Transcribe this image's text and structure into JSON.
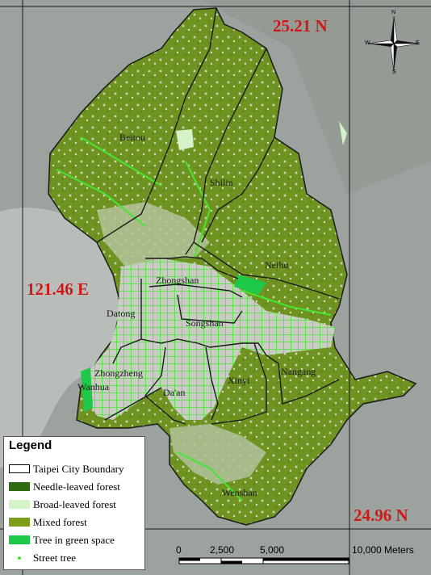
{
  "coordinates": {
    "lat_top": "25.21 N",
    "lon_left": "121.46 E",
    "lat_bottom": "24.96 N"
  },
  "districts": [
    "Beitou",
    "Shilin",
    "Neihu",
    "Zhongshan",
    "Datong",
    "Songshan",
    "Zhongzheng",
    "Wanhua",
    "Da'an",
    "Xinyi",
    "Nangang",
    "Wenshan"
  ],
  "legend": {
    "title": "Legend",
    "items": [
      {
        "label": "Taipei City Boundary",
        "color": "#ffffff",
        "kind": "boundary"
      },
      {
        "label": "Needle-leaved forest",
        "color": "#2e6b12",
        "kind": "fill"
      },
      {
        "label": "Broad-leaved forest",
        "color": "#d5f3c8",
        "kind": "fill"
      },
      {
        "label": "Mixed forest",
        "color": "#7a9e17",
        "kind": "fill"
      },
      {
        "label": "Tree in green space",
        "color": "#1ec94a",
        "kind": "fill"
      },
      {
        "label": "Street tree",
        "color": "#3ee82e",
        "kind": "dot"
      }
    ]
  },
  "scale_bar": {
    "labels": [
      "0",
      "2,500",
      "5,000",
      "10,000 Meters"
    ]
  },
  "north_arrow": {
    "n": "N",
    "s": "S",
    "e": "E",
    "w": "W"
  },
  "colors": {
    "satellite_bg": "#9aa09c",
    "forest": "#6f9320",
    "urban": "#c8ccc6",
    "street_tree": "#3ee82e",
    "coordinate_text": "#d01818"
  }
}
